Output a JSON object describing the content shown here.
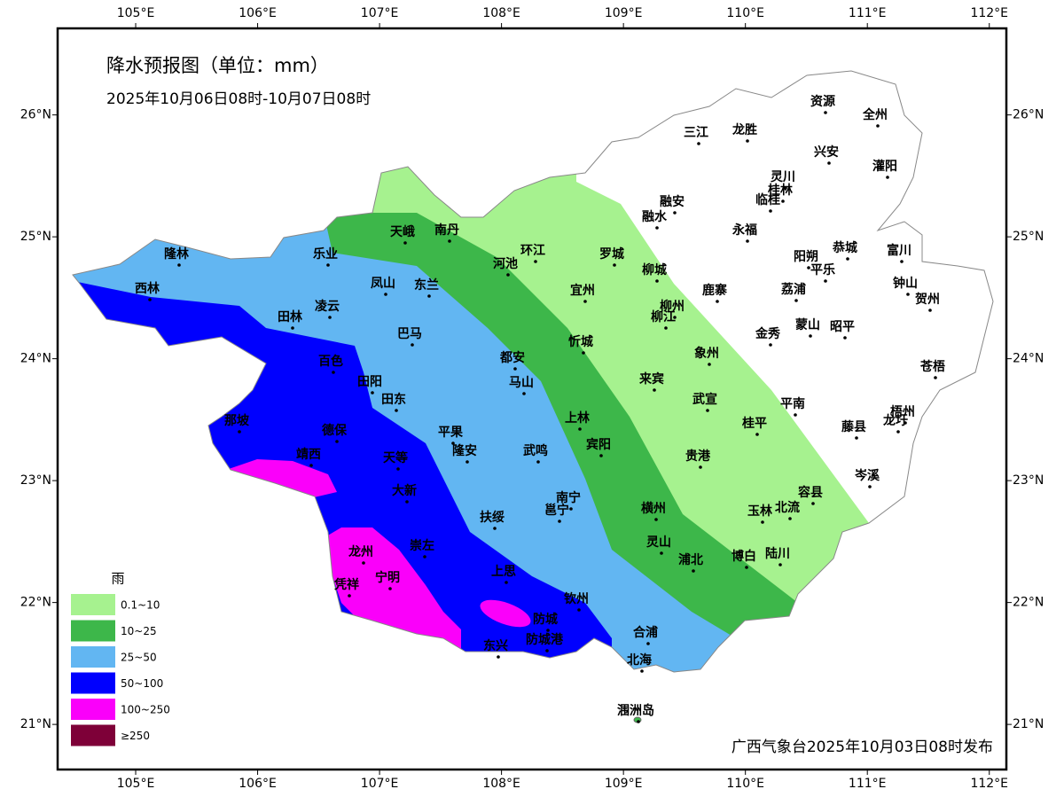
{
  "map": {
    "title": "降水预报图（单位：mm）",
    "subtitle": "2025年10月06日08时-10月07日08时",
    "credit": "广西气象台2025年10月03日08时发布",
    "xlim": [
      104.36,
      112.14
    ],
    "ylim": [
      20.63,
      26.71
    ],
    "xticks": [
      {
        "value": 105,
        "label": "105°E"
      },
      {
        "value": 106,
        "label": "106°E"
      },
      {
        "value": 107,
        "label": "107°E"
      },
      {
        "value": 108,
        "label": "108°E"
      },
      {
        "value": 109,
        "label": "109°E"
      },
      {
        "value": 110,
        "label": "110°E"
      },
      {
        "value": 111,
        "label": "111°E"
      },
      {
        "value": 112,
        "label": "112°E"
      }
    ],
    "yticks": [
      {
        "value": 26,
        "label": "26°N"
      },
      {
        "value": 25,
        "label": "25°N"
      },
      {
        "value": 24,
        "label": "24°N"
      },
      {
        "value": 23,
        "label": "23°N"
      },
      {
        "value": 22,
        "label": "22°N"
      },
      {
        "value": 21,
        "label": "21°N"
      }
    ],
    "legend": {
      "title": "雨",
      "items": [
        {
          "label": "0.1~10",
          "color": "#a6f28f"
        },
        {
          "label": "10~25",
          "color": "#3db74a"
        },
        {
          "label": "25~50",
          "color": "#62b6f2"
        },
        {
          "label": "50~100",
          "color": "#0000fe"
        },
        {
          "label": "100~250",
          "color": "#fa00fa"
        },
        {
          "label": "≥250",
          "color": "#7e0038"
        }
      ]
    },
    "cities": [
      "资源",
      "全州",
      "三江",
      "龙胜",
      "兴安",
      "灌阳",
      "灵川",
      "桂林",
      "临桂",
      "融安",
      "融水",
      "永福",
      "天峨",
      "南丹",
      "恭城",
      "富川",
      "环江",
      "罗城",
      "河池",
      "阳朔",
      "平乐",
      "隆林",
      "乐业",
      "柳城",
      "钟山",
      "贺州",
      "凤山",
      "东兰",
      "宜州",
      "西林",
      "鹿寨",
      "荔浦",
      "柳州",
      "柳江",
      "凌云",
      "田林",
      "蒙山",
      "昭平",
      "金秀",
      "巴马",
      "忻城",
      "象州",
      "都安",
      "百色",
      "苍梧",
      "马山",
      "来宾",
      "田阳",
      "武宣",
      "平南",
      "田东",
      "梧州",
      "龙圩",
      "藤县",
      "上林",
      "桂平",
      "那坡",
      "德保",
      "平果",
      "宾阳",
      "隆安",
      "武鸣",
      "贵港",
      "靖西",
      "天等",
      "岑溪",
      "大新",
      "南宁",
      "邕宁",
      "容县",
      "横州",
      "玉林",
      "北流",
      "扶绥",
      "崇左",
      "灵山",
      "龙州",
      "浦北",
      "博白",
      "陆川",
      "宁明",
      "凭祥",
      "上思",
      "钦州",
      "防城",
      "东兴",
      "防城港",
      "合浦",
      "北海",
      "涠洲岛"
    ]
  }
}
